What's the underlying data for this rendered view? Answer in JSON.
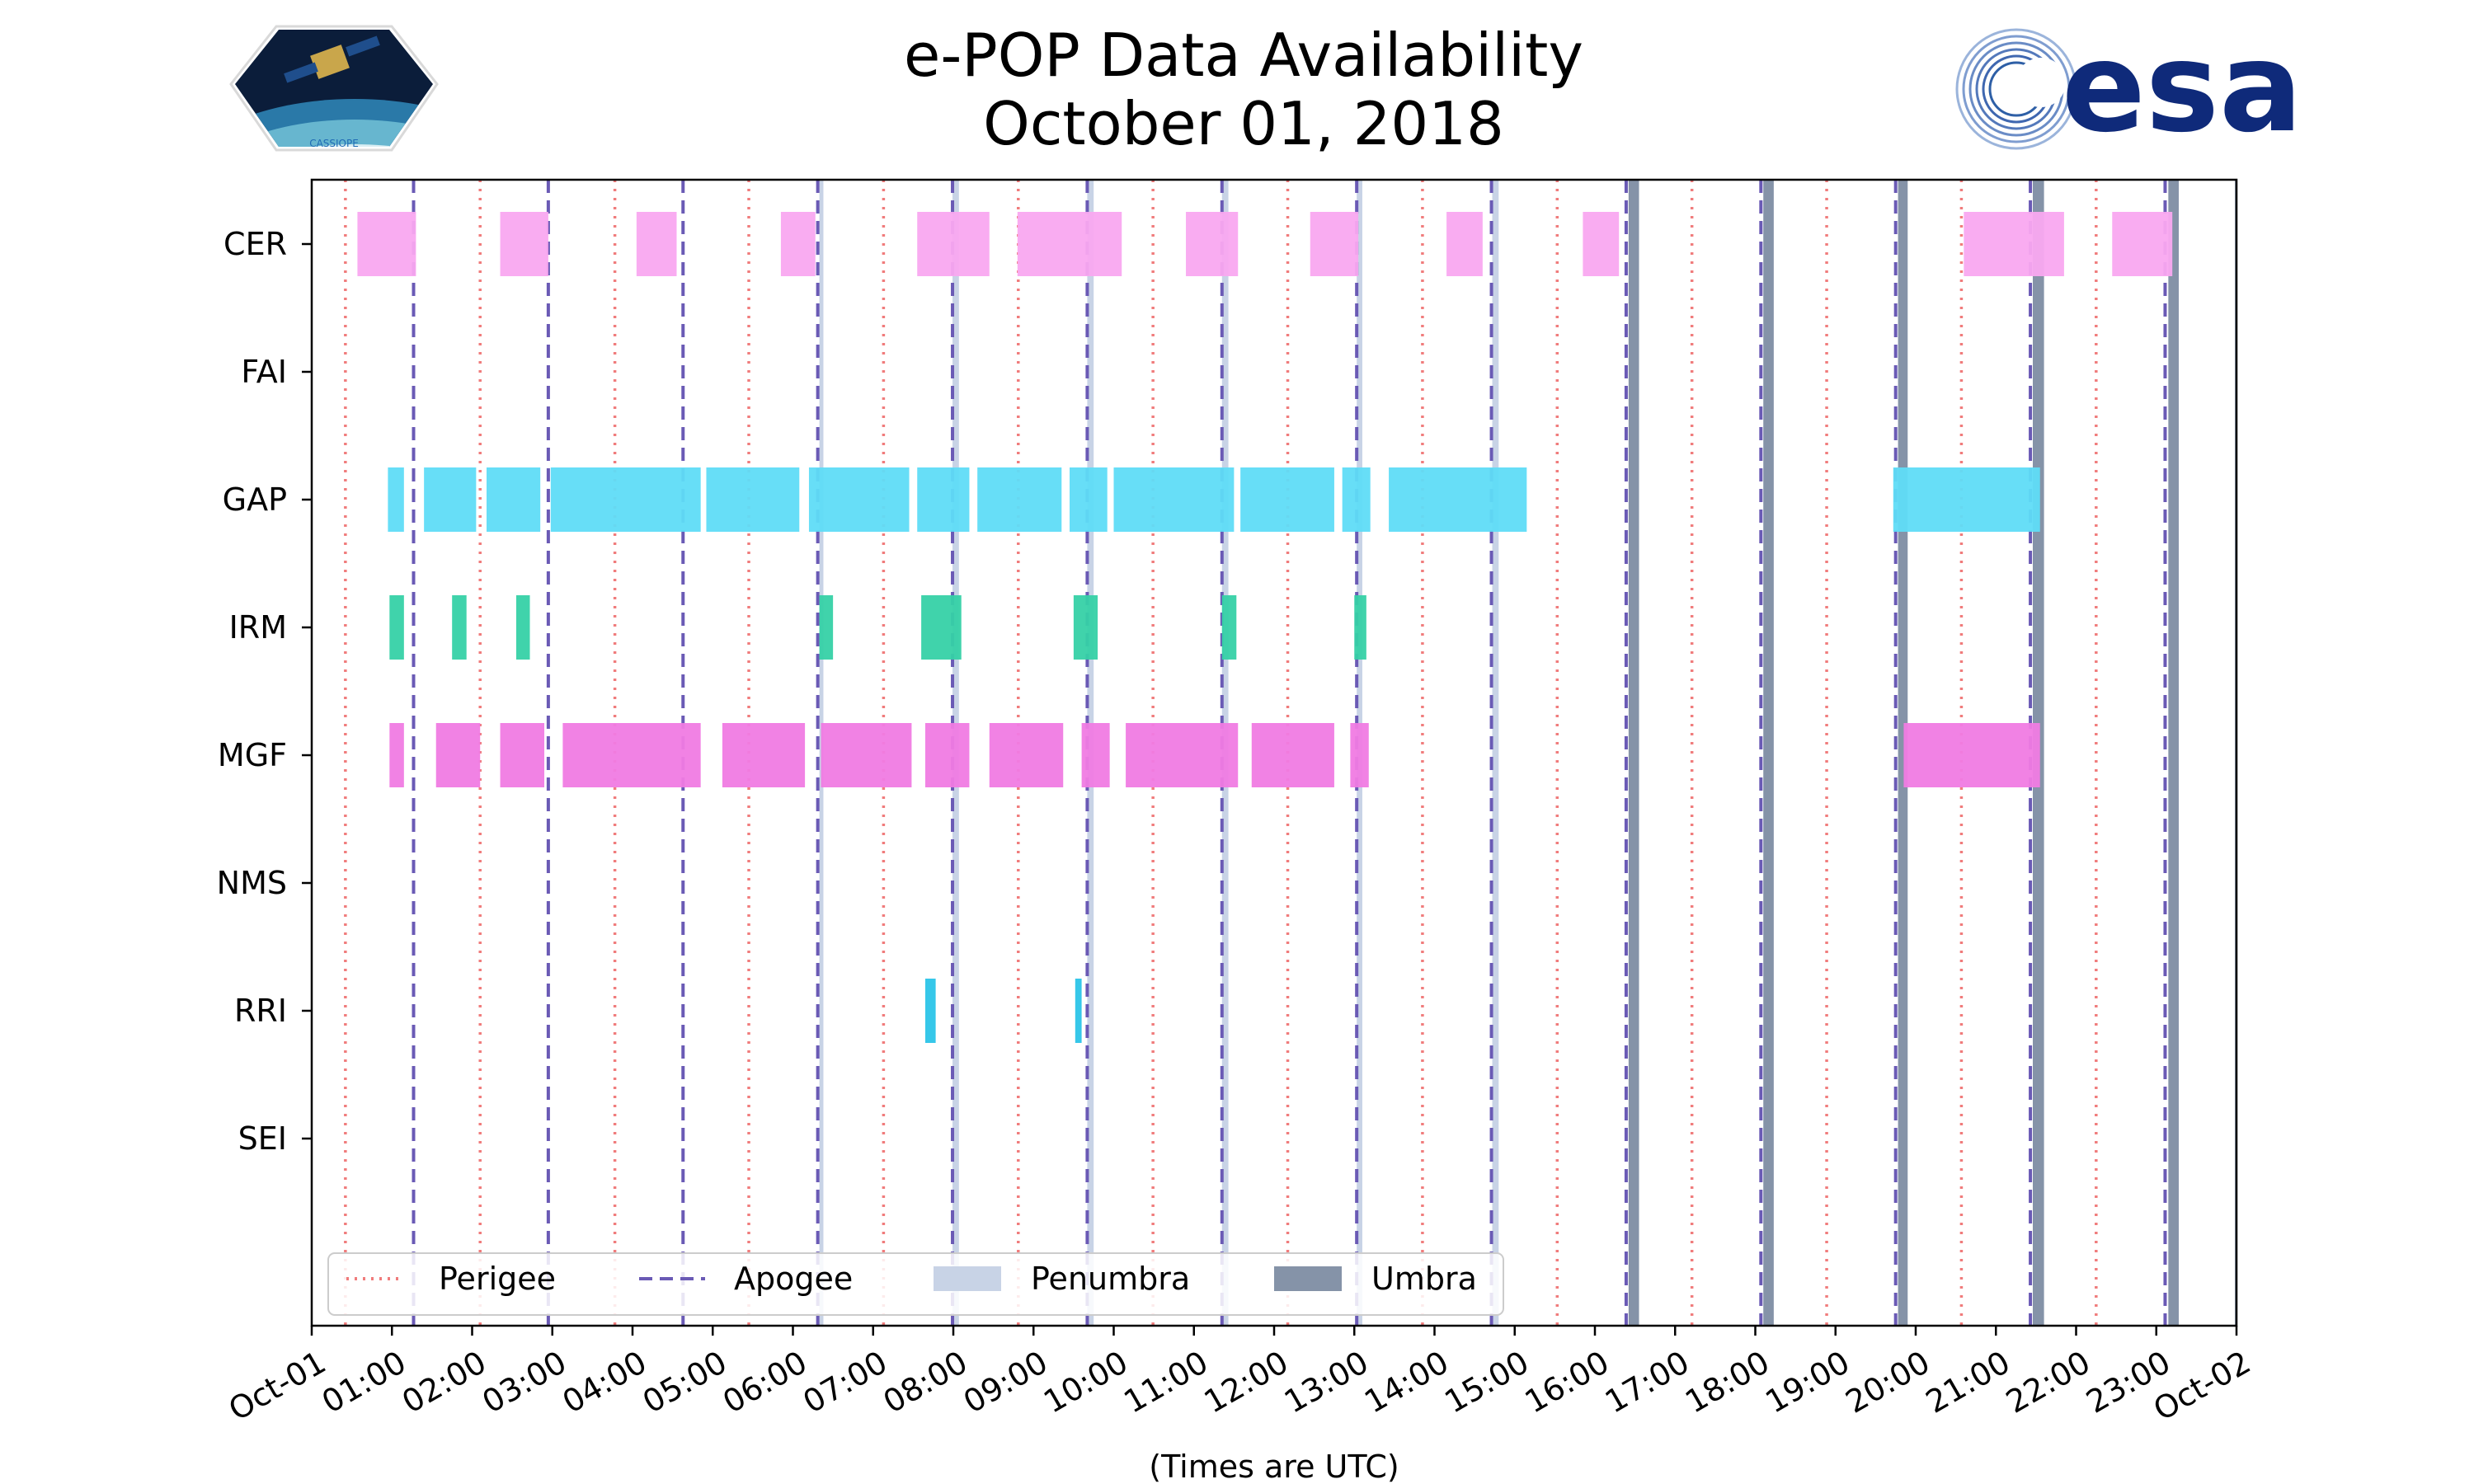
{
  "chart_data": {
    "type": "timeline",
    "title": "e-POP Data Availability",
    "subtitle": "October 01, 2018",
    "xlabel": "(Times are UTC)",
    "xlim": [
      0,
      24
    ],
    "x_ticks": [
      "Oct-01",
      "01:00",
      "02:00",
      "03:00",
      "04:00",
      "05:00",
      "06:00",
      "07:00",
      "08:00",
      "09:00",
      "10:00",
      "11:00",
      "12:00",
      "13:00",
      "14:00",
      "15:00",
      "16:00",
      "17:00",
      "18:00",
      "19:00",
      "20:00",
      "21:00",
      "22:00",
      "23:00",
      "Oct-02"
    ],
    "instruments": [
      "CER",
      "FAI",
      "GAP",
      "IRM",
      "MGF",
      "NMS",
      "RRI",
      "SEI"
    ],
    "series": [
      {
        "name": "CER",
        "color": "#f9a8f0",
        "intervals": [
          [
            0.57,
            1.3
          ],
          [
            2.35,
            2.95
          ],
          [
            4.05,
            4.55
          ],
          [
            5.85,
            6.28
          ],
          [
            7.55,
            8.45
          ],
          [
            8.8,
            10.1
          ],
          [
            10.9,
            11.55
          ],
          [
            12.45,
            13.05
          ],
          [
            14.15,
            14.6
          ],
          [
            15.85,
            16.3
          ],
          [
            20.6,
            21.85
          ],
          [
            22.45,
            23.2
          ]
        ]
      },
      {
        "name": "FAI",
        "color": "#f9a8f0",
        "intervals": []
      },
      {
        "name": "GAP",
        "color": "#5fdcf7",
        "intervals": [
          [
            0.95,
            1.15
          ],
          [
            1.4,
            2.05
          ],
          [
            2.18,
            2.85
          ],
          [
            2.98,
            4.85
          ],
          [
            4.92,
            6.08
          ],
          [
            6.2,
            7.45
          ],
          [
            7.55,
            8.2
          ],
          [
            8.3,
            9.35
          ],
          [
            9.45,
            9.92
          ],
          [
            10.0,
            11.5
          ],
          [
            11.58,
            12.75
          ],
          [
            12.85,
            13.2
          ],
          [
            13.43,
            15.15
          ],
          [
            19.72,
            21.55
          ]
        ]
      },
      {
        "name": "IRM",
        "color": "#36d1a6",
        "intervals": [
          [
            0.97,
            1.15
          ],
          [
            1.75,
            1.93
          ],
          [
            2.55,
            2.72
          ],
          [
            6.33,
            6.5
          ],
          [
            7.6,
            8.1
          ],
          [
            9.5,
            9.8
          ],
          [
            11.35,
            11.53
          ],
          [
            13.0,
            13.15
          ]
        ]
      },
      {
        "name": "MGF",
        "color": "#f07be3",
        "intervals": [
          [
            0.97,
            1.15
          ],
          [
            1.55,
            2.1
          ],
          [
            2.35,
            2.9
          ],
          [
            3.13,
            4.85
          ],
          [
            5.12,
            6.15
          ],
          [
            6.35,
            7.48
          ],
          [
            7.65,
            8.2
          ],
          [
            8.45,
            9.37
          ],
          [
            9.6,
            9.95
          ],
          [
            10.15,
            11.55
          ],
          [
            11.72,
            12.75
          ],
          [
            12.95,
            13.18
          ],
          [
            19.85,
            21.55
          ]
        ]
      },
      {
        "name": "NMS",
        "color": "#f07be3",
        "intervals": []
      },
      {
        "name": "RRI",
        "color": "#2bc4e8",
        "intervals": [
          [
            7.65,
            7.78
          ],
          [
            9.52,
            9.6
          ]
        ]
      },
      {
        "name": "SEI",
        "color": "#2bc4e8",
        "intervals": []
      }
    ],
    "perigee": [
      0.42,
      2.1,
      3.78,
      5.45,
      7.13,
      8.81,
      10.49,
      12.17,
      13.85,
      15.53,
      17.21,
      18.89,
      20.57,
      22.25
    ],
    "apogee": [
      1.27,
      2.95,
      4.63,
      6.31,
      7.99,
      9.67,
      11.35,
      13.03,
      14.71,
      16.39,
      18.07,
      19.75,
      21.43,
      23.11
    ],
    "penumbra": [
      [
        6.33,
        6.38
      ],
      [
        7.99,
        8.07
      ],
      [
        9.67,
        9.75
      ],
      [
        11.35,
        11.43
      ],
      [
        13.03,
        13.1
      ],
      [
        14.72,
        14.8
      ]
    ],
    "umbra": [
      [
        16.42,
        16.55
      ],
      [
        18.1,
        18.23
      ],
      [
        19.78,
        19.9
      ],
      [
        21.46,
        21.6
      ],
      [
        23.15,
        23.28
      ],
      [
        23.98,
        24.0
      ]
    ],
    "legend": {
      "position": "bottom-left",
      "items": [
        {
          "label": "Perigee",
          "style": "dotted",
          "color": "#f07c7c"
        },
        {
          "label": "Apogee",
          "style": "dashed",
          "color": "#6a5ab5"
        },
        {
          "label": "Penumbra",
          "style": "patch",
          "color": "#c8d3e6"
        },
        {
          "label": "Umbra",
          "style": "patch",
          "color": "#8593a8"
        }
      ]
    }
  },
  "logos": {
    "left_text": "CASSIOPE",
    "right_text": "esa"
  }
}
